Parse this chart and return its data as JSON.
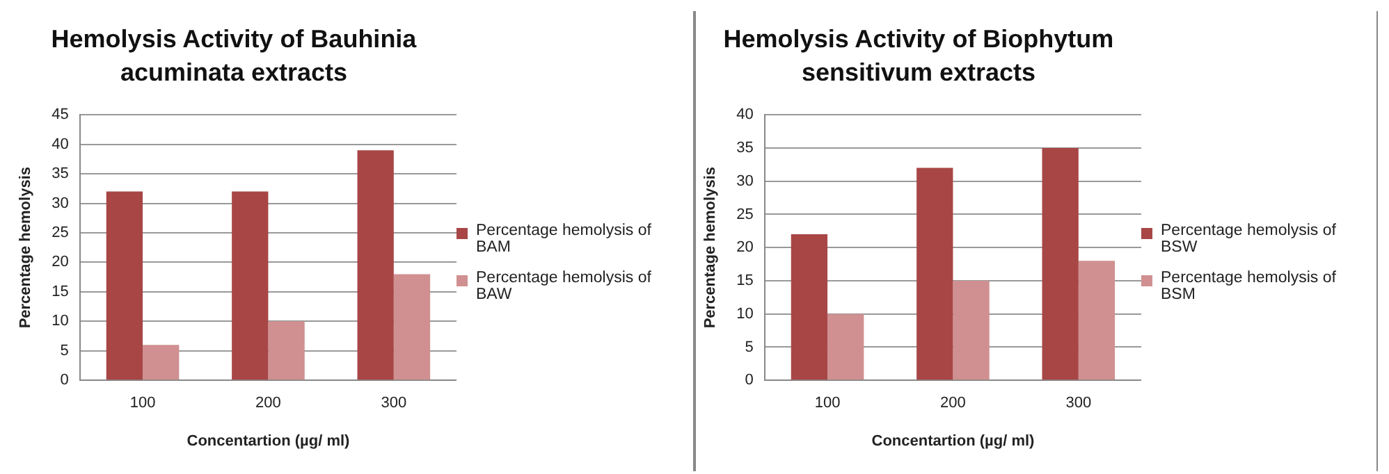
{
  "chart_data": [
    {
      "type": "bar",
      "title": "Hemolysis Activity of Bauhinia acuminata extracts",
      "xlabel": "Concentartion (µg/ ml)",
      "ylabel": "Percentage hemolysis",
      "categories": [
        "100",
        "200",
        "300"
      ],
      "series": [
        {
          "name": "Percentage hemolysis of BAM",
          "color": "#a84646",
          "values": [
            32,
            32,
            39
          ]
        },
        {
          "name": "Percentage hemolysis of BAW",
          "color": "#d09091",
          "values": [
            6,
            10,
            18
          ]
        }
      ],
      "ylim": [
        0,
        45
      ],
      "yticks": [
        0,
        5,
        10,
        15,
        20,
        25,
        30,
        35,
        40,
        45
      ],
      "grid": "y",
      "legend": "right"
    },
    {
      "type": "bar",
      "title": "Hemolysis Activity of Biophytum sensitivum extracts",
      "xlabel": "Concentartion (µg/ ml)",
      "ylabel": "Percentage hemolysis",
      "categories": [
        "100",
        "200",
        "300"
      ],
      "series": [
        {
          "name": "Percentage hemolysis of BSW",
          "color": "#a84646",
          "values": [
            22,
            32,
            35
          ]
        },
        {
          "name": "Percentage hemolysis of BSM",
          "color": "#d09091",
          "values": [
            10,
            15,
            18
          ]
        }
      ],
      "ylim": [
        0,
        40
      ],
      "yticks": [
        0,
        5,
        10,
        15,
        20,
        25,
        30,
        35,
        40
      ],
      "grid": "y",
      "legend": "right"
    }
  ]
}
